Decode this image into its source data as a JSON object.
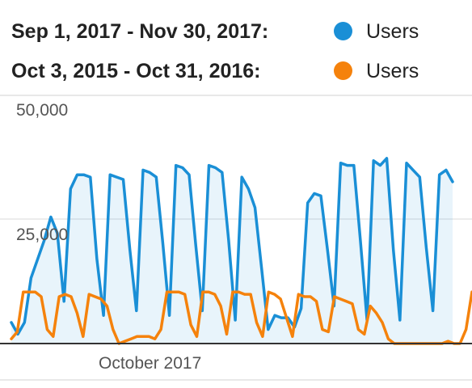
{
  "legend": {
    "current_range": "Sep 1, 2017 - Nov 30, 2017:",
    "previous_range": "Oct 3, 2015 - Oct 31, 2016:",
    "current_series": "Users",
    "previous_series": "Users",
    "current_color": "#1a8fd6",
    "previous_color": "#f5820c"
  },
  "chart_data": {
    "type": "line",
    "y_ticks": [
      "50,000",
      "25,000"
    ],
    "x_ticks": [
      "October 2017"
    ],
    "ylim": [
      0,
      50000
    ],
    "grid": true,
    "legend_position": "top",
    "series": [
      {
        "name": "Users",
        "legend_label": "Sep 1, 2017 - Nov 30, 2017:",
        "color": "#1a8fd6",
        "fill": true,
        "values": [
          4500,
          2000,
          4500,
          14000,
          18000,
          22000,
          27000,
          23500,
          9000,
          33000,
          36000,
          36000,
          35500,
          18000,
          6000,
          36000,
          35500,
          35000,
          20000,
          7000,
          37000,
          36500,
          35500,
          21500,
          6000,
          38000,
          37500,
          36000,
          21000,
          7000,
          38000,
          37500,
          36500,
          22000,
          5000,
          35500,
          33000,
          29000,
          16000,
          3000,
          6000,
          5500,
          5500,
          3500,
          7500,
          30000,
          32000,
          31500,
          20000,
          8000,
          38500,
          38000,
          38000,
          22000,
          5000,
          39000,
          38000,
          39500,
          20000,
          5000,
          38500,
          37000,
          35500,
          20500,
          7000,
          36000,
          37000,
          34500
        ]
      },
      {
        "name": "Users",
        "legend_label": "Oct 3, 2015 - Oct 31, 2016:",
        "color": "#f5820c",
        "fill": false,
        "values": [
          1000,
          2500,
          11000,
          11000,
          11000,
          10000,
          3000,
          1500,
          10000,
          10500,
          10000,
          6500,
          1500,
          10500,
          10000,
          9500,
          8000,
          3000,
          0,
          500,
          1000,
          1500,
          1500,
          1500,
          1000,
          3000,
          11000,
          11000,
          11000,
          10500,
          4000,
          1500,
          11000,
          11000,
          10500,
          8000,
          2000,
          11000,
          11000,
          10500,
          10500,
          4500,
          1500,
          11000,
          10500,
          9500,
          5500,
          1500,
          10500,
          10000,
          10000,
          9000,
          3000,
          2500,
          10000,
          9500,
          9000,
          8500,
          3000,
          2000,
          8000,
          6500,
          4500,
          1000,
          0,
          0,
          0,
          0,
          0,
          0,
          0,
          0,
          0,
          500,
          0,
          0,
          3000,
          11000
        ]
      }
    ]
  }
}
